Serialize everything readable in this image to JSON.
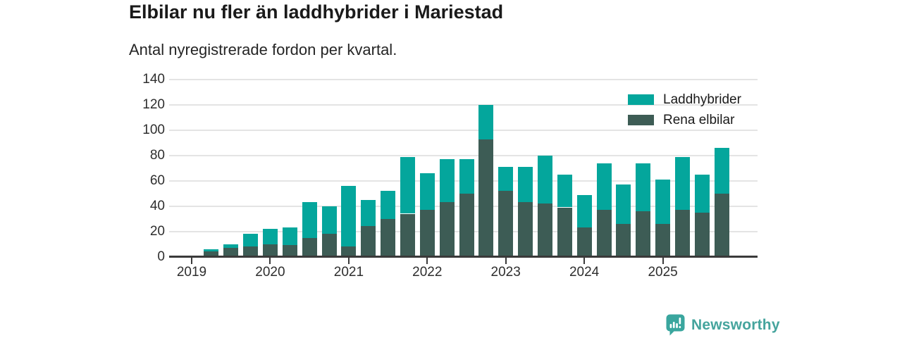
{
  "header": {
    "title": "Elbilar nu fler än laddhybrider i Mariestad",
    "subtitle": "Antal nyregistrerade fordon per kvartal."
  },
  "chart_data": {
    "type": "bar",
    "stacked": true,
    "title": "Elbilar nu fler än laddhybrider i Mariestad",
    "subtitle": "Antal nyregistrerade fordon per kvartal.",
    "xlabel": "",
    "ylabel": "",
    "ylim": [
      0,
      140
    ],
    "y_ticks": [
      0,
      20,
      40,
      60,
      80,
      100,
      120,
      140
    ],
    "x_ticks": [
      "2019",
      "2020",
      "2021",
      "2022",
      "2023",
      "2024",
      "2025"
    ],
    "grid": true,
    "legend_position": "top-right",
    "categories": [
      "2019 Q2",
      "2019 Q3",
      "2019 Q4",
      "2020 Q1",
      "2020 Q2",
      "2020 Q3",
      "2020 Q4",
      "2021 Q1",
      "2021 Q2",
      "2021 Q3",
      "2021 Q4",
      "2022 Q1",
      "2022 Q2",
      "2022 Q3",
      "2022 Q4",
      "2023 Q1",
      "2023 Q2",
      "2023 Q3",
      "2023 Q4",
      "2024 Q1",
      "2024 Q2",
      "2024 Q3",
      "2024 Q4",
      "2025 Q1",
      "2025 Q2",
      "2025 Q3",
      "2025 Q4"
    ],
    "series": [
      {
        "name": "Rena elbilar",
        "color": "#3d5c55",
        "values": [
          4,
          7,
          8,
          10,
          9,
          15,
          18,
          8,
          24,
          30,
          34,
          37,
          43,
          50,
          93,
          52,
          43,
          42,
          39,
          23,
          37,
          26,
          36,
          26,
          37,
          35,
          50
        ]
      },
      {
        "name": "Laddhybrider",
        "color": "#04a69c",
        "values": [
          2,
          3,
          10,
          12,
          14,
          28,
          22,
          48,
          21,
          22,
          45,
          29,
          34,
          27,
          27,
          19,
          28,
          38,
          26,
          26,
          37,
          31,
          38,
          35,
          42,
          30,
          36
        ]
      }
    ],
    "totals": [
      6,
      10,
      18,
      22,
      23,
      43,
      40,
      56,
      45,
      52,
      79,
      66,
      77,
      77,
      120,
      71,
      71,
      80,
      65,
      49,
      74,
      57,
      74,
      61,
      79,
      65,
      86
    ],
    "legend": [
      {
        "label": "Laddhybrider",
        "color": "#04a69c"
      },
      {
        "label": "Rena elbilar",
        "color": "#3d5c55"
      }
    ]
  },
  "footer": {
    "brand": "Newsworthy",
    "logo_icon": "bar-chart-badge-icon"
  }
}
